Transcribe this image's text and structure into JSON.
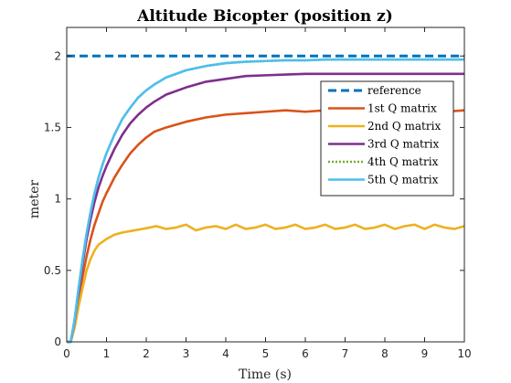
{
  "chart_data": {
    "type": "line",
    "title": "Altitude Bicopter (position z)",
    "xlabel": "Time (s)",
    "ylabel": "meter",
    "xlim": [
      0,
      10
    ],
    "ylim": [
      0,
      2.2
    ],
    "xticks": [
      0,
      1,
      2,
      3,
      4,
      5,
      6,
      7,
      8,
      9,
      10
    ],
    "yticks": [
      0,
      0.5,
      1,
      1.5,
      2
    ],
    "ytick_labels": [
      "0",
      "0.5",
      "1",
      "1.5",
      "2"
    ],
    "grid": false,
    "legend_position": "top-right",
    "series": [
      {
        "name": "reference",
        "color": "#0072BD",
        "style": "dashed",
        "x": [
          0,
          10
        ],
        "y": [
          2,
          2
        ]
      },
      {
        "name": "1st Q matrix",
        "color": "#D95319",
        "style": "solid",
        "x": [
          0,
          0.1,
          0.2,
          0.3,
          0.4,
          0.5,
          0.6,
          0.7,
          0.8,
          0.9,
          1.0,
          1.2,
          1.4,
          1.6,
          1.8,
          2.0,
          2.2,
          2.5,
          3.0,
          3.5,
          4.0,
          4.5,
          5.0,
          5.5,
          6.0,
          6.5,
          7.0,
          7.5,
          8.0,
          8.5,
          9.0,
          9.5,
          10.0
        ],
        "y": [
          0,
          0.0,
          0.12,
          0.3,
          0.46,
          0.6,
          0.72,
          0.82,
          0.9,
          0.98,
          1.04,
          1.15,
          1.24,
          1.32,
          1.38,
          1.43,
          1.47,
          1.5,
          1.54,
          1.57,
          1.59,
          1.6,
          1.61,
          1.62,
          1.61,
          1.62,
          1.62,
          1.61,
          1.62,
          1.62,
          1.62,
          1.61,
          1.62
        ]
      },
      {
        "name": "2nd Q matrix",
        "color": "#EDB120",
        "style": "solid",
        "x": [
          0,
          0.1,
          0.2,
          0.3,
          0.4,
          0.5,
          0.6,
          0.7,
          0.8,
          0.9,
          1.0,
          1.2,
          1.4,
          1.6,
          1.8,
          2.0,
          2.25,
          2.5,
          2.75,
          3.0,
          3.25,
          3.5,
          3.75,
          4.0,
          4.25,
          4.5,
          4.75,
          5.0,
          5.25,
          5.5,
          5.75,
          6.0,
          6.25,
          6.5,
          6.75,
          7.0,
          7.25,
          7.5,
          7.75,
          8.0,
          8.25,
          8.5,
          8.75,
          9.0,
          9.25,
          9.5,
          9.75,
          10.0
        ],
        "y": [
          0,
          0.0,
          0.1,
          0.25,
          0.38,
          0.5,
          0.58,
          0.64,
          0.68,
          0.7,
          0.72,
          0.75,
          0.765,
          0.775,
          0.785,
          0.795,
          0.81,
          0.79,
          0.8,
          0.82,
          0.78,
          0.8,
          0.81,
          0.79,
          0.82,
          0.79,
          0.8,
          0.82,
          0.79,
          0.8,
          0.82,
          0.79,
          0.8,
          0.82,
          0.79,
          0.8,
          0.82,
          0.79,
          0.8,
          0.82,
          0.79,
          0.81,
          0.82,
          0.79,
          0.82,
          0.8,
          0.79,
          0.81
        ]
      },
      {
        "name": "3rd Q matrix",
        "color": "#7E2F8E",
        "style": "solid",
        "x": [
          0,
          0.1,
          0.2,
          0.3,
          0.4,
          0.5,
          0.6,
          0.7,
          0.8,
          0.9,
          1.0,
          1.2,
          1.4,
          1.6,
          1.8,
          2.0,
          2.2,
          2.5,
          3.0,
          3.5,
          4.0,
          4.5,
          5.0,
          5.5,
          6.0,
          6.5,
          7.0,
          7.5,
          8.0,
          8.5,
          9.0,
          9.5,
          10.0
        ],
        "y": [
          0,
          0.0,
          0.15,
          0.35,
          0.55,
          0.72,
          0.86,
          0.98,
          1.08,
          1.16,
          1.23,
          1.35,
          1.45,
          1.53,
          1.59,
          1.64,
          1.68,
          1.73,
          1.78,
          1.82,
          1.84,
          1.86,
          1.865,
          1.87,
          1.875,
          1.875,
          1.875,
          1.875,
          1.875,
          1.875,
          1.875,
          1.875,
          1.875
        ]
      },
      {
        "name": "4th Q matrix",
        "color": "#77AC30",
        "style": "dotted",
        "x": [
          0,
          0.1,
          0.2,
          0.3,
          0.4,
          0.5,
          0.6,
          0.7,
          0.8,
          0.9,
          1.0,
          1.2,
          1.4,
          1.6,
          1.8,
          2.0,
          2.2,
          2.5,
          3.0,
          3.5,
          4.0,
          4.5,
          5.0,
          5.5,
          6.0,
          6.5,
          7.0,
          7.5,
          8.0,
          8.5,
          9.0,
          9.5,
          10.0
        ],
        "y": [
          0,
          0.0,
          0.16,
          0.38,
          0.58,
          0.76,
          0.91,
          1.04,
          1.15,
          1.24,
          1.32,
          1.45,
          1.56,
          1.64,
          1.71,
          1.76,
          1.8,
          1.85,
          1.9,
          1.93,
          1.95,
          1.96,
          1.965,
          1.97,
          1.97,
          1.975,
          1.975,
          1.975,
          1.975,
          1.975,
          1.975,
          1.975,
          1.975
        ]
      },
      {
        "name": "5th Q matrix",
        "color": "#4DBEEE",
        "style": "solid",
        "x": [
          0,
          0.1,
          0.2,
          0.3,
          0.4,
          0.5,
          0.6,
          0.7,
          0.8,
          0.9,
          1.0,
          1.2,
          1.4,
          1.6,
          1.8,
          2.0,
          2.2,
          2.5,
          3.0,
          3.5,
          4.0,
          4.5,
          5.0,
          5.5,
          6.0,
          6.5,
          7.0,
          7.5,
          8.0,
          8.5,
          9.0,
          9.5,
          10.0
        ],
        "y": [
          0,
          0.0,
          0.16,
          0.38,
          0.58,
          0.76,
          0.91,
          1.04,
          1.15,
          1.24,
          1.32,
          1.45,
          1.56,
          1.64,
          1.71,
          1.76,
          1.8,
          1.85,
          1.9,
          1.93,
          1.95,
          1.96,
          1.965,
          1.97,
          1.97,
          1.975,
          1.975,
          1.975,
          1.975,
          1.975,
          1.975,
          1.975,
          1.975
        ]
      }
    ]
  }
}
